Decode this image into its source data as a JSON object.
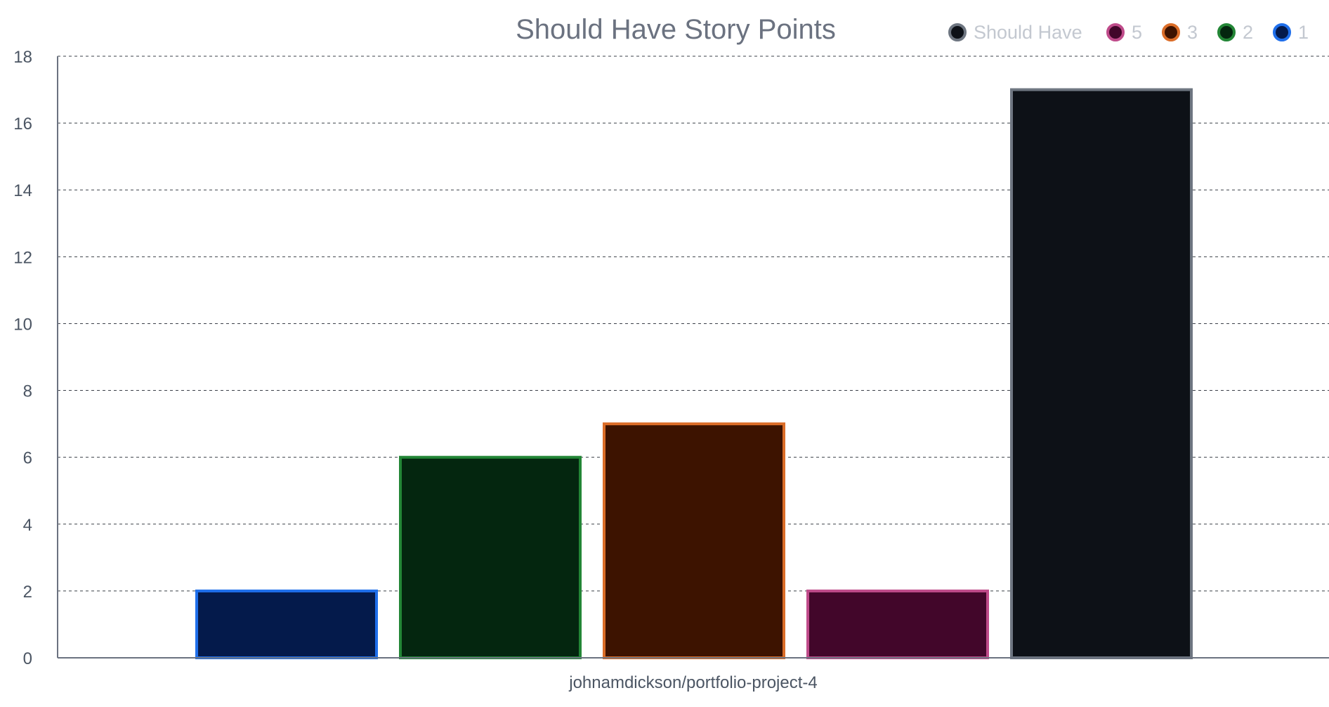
{
  "chart_data": {
    "type": "bar",
    "title": "Should Have Story Points",
    "categories": [
      "johnamdickson/portfolio-project-4"
    ],
    "xlabel": "",
    "ylabel": "",
    "ylim": [
      0,
      18
    ],
    "yticks": [
      0,
      2,
      4,
      6,
      8,
      10,
      12,
      14,
      16,
      18
    ],
    "grid": true,
    "legend_position": "top-right",
    "series": [
      {
        "name": "1",
        "values": [
          2
        ],
        "fill": "#041a4b",
        "stroke": "#1f6feb"
      },
      {
        "name": "2",
        "values": [
          6
        ],
        "fill": "#04260f",
        "stroke": "#238636"
      },
      {
        "name": "3",
        "values": [
          7
        ],
        "fill": "#3d1300",
        "stroke": "#db6d28"
      },
      {
        "name": "5",
        "values": [
          2
        ],
        "fill": "#42062a",
        "stroke": "#bf4b8a"
      },
      {
        "name": "Should Have",
        "values": [
          17
        ],
        "fill": "#0d1117",
        "stroke": "#6e7681"
      }
    ],
    "legend_order": [
      "Should Have",
      "5",
      "3",
      "2",
      "1"
    ]
  },
  "colors": {
    "axis": "#6b7280",
    "grid": "#3b4048",
    "title": "#6b7280",
    "tick": "#4b5563",
    "legend_text": "#c3c8d0"
  }
}
